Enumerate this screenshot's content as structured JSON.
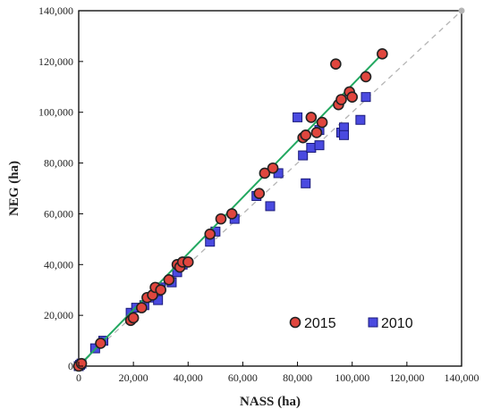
{
  "chart_data": {
    "type": "scatter",
    "xlabel": "NASS (ha)",
    "ylabel": "NEG (ha)",
    "xlim": [
      0,
      140000
    ],
    "ylim": [
      0,
      140000
    ],
    "x_ticks": [
      "0",
      "20,000",
      "40,000",
      "60,000",
      "80,000",
      "100,000",
      "120,000",
      "140,000"
    ],
    "y_ticks": [
      "0",
      "20,000",
      "40,000",
      "60,000",
      "80,000",
      "100,000",
      "120,000",
      "140,000"
    ],
    "grid": false,
    "legend_position": "bottom-right",
    "series": [
      {
        "name": "2010",
        "marker": "square",
        "color": "#4a4ae0",
        "points": [
          [
            0,
            0
          ],
          [
            500,
            500
          ],
          [
            1000,
            1000
          ],
          [
            6000,
            7000
          ],
          [
            9000,
            10000
          ],
          [
            19000,
            21000
          ],
          [
            21000,
            23000
          ],
          [
            24000,
            24000
          ],
          [
            26000,
            27000
          ],
          [
            28000,
            29000
          ],
          [
            29000,
            26000
          ],
          [
            30000,
            31000
          ],
          [
            34000,
            33000
          ],
          [
            36000,
            37000
          ],
          [
            38000,
            40000
          ],
          [
            39000,
            41000
          ],
          [
            48000,
            49000
          ],
          [
            50000,
            53000
          ],
          [
            57000,
            58000
          ],
          [
            65000,
            67000
          ],
          [
            70000,
            63000
          ],
          [
            73000,
            76000
          ],
          [
            80000,
            98000
          ],
          [
            82000,
            83000
          ],
          [
            83000,
            72000
          ],
          [
            85000,
            86000
          ],
          [
            88000,
            87000
          ],
          [
            88000,
            93000
          ],
          [
            96000,
            92000
          ],
          [
            97000,
            94000
          ],
          [
            97000,
            91000
          ],
          [
            103000,
            97000
          ],
          [
            105000,
            106000
          ]
        ]
      },
      {
        "name": "2015",
        "marker": "circle",
        "color": "#e0463e",
        "points": [
          [
            0,
            0
          ],
          [
            1000,
            1000
          ],
          [
            8000,
            9000
          ],
          [
            19000,
            18000
          ],
          [
            20000,
            19000
          ],
          [
            23000,
            23000
          ],
          [
            25000,
            27000
          ],
          [
            27000,
            28000
          ],
          [
            28000,
            31000
          ],
          [
            30000,
            30000
          ],
          [
            33000,
            34000
          ],
          [
            36000,
            40000
          ],
          [
            37000,
            39000
          ],
          [
            38000,
            41000
          ],
          [
            40000,
            41000
          ],
          [
            48000,
            52000
          ],
          [
            52000,
            58000
          ],
          [
            56000,
            60000
          ],
          [
            66000,
            68000
          ],
          [
            68000,
            76000
          ],
          [
            71000,
            78000
          ],
          [
            82000,
            90000
          ],
          [
            83000,
            91000
          ],
          [
            85000,
            98000
          ],
          [
            87000,
            92000
          ],
          [
            89000,
            96000
          ],
          [
            94000,
            119000
          ],
          [
            95000,
            103000
          ],
          [
            96000,
            105000
          ],
          [
            99000,
            108000
          ],
          [
            100000,
            106000
          ],
          [
            105000,
            114000
          ],
          [
            111000,
            123000
          ]
        ]
      }
    ],
    "trend_line": {
      "from": [
        0,
        0
      ],
      "to": [
        111000,
        123000
      ],
      "color": "#22a860"
    },
    "one_to_one_line": {
      "from": [
        0,
        0
      ],
      "to": [
        140000,
        140000
      ],
      "color": "#b4b4b4",
      "style": "dashed"
    }
  }
}
